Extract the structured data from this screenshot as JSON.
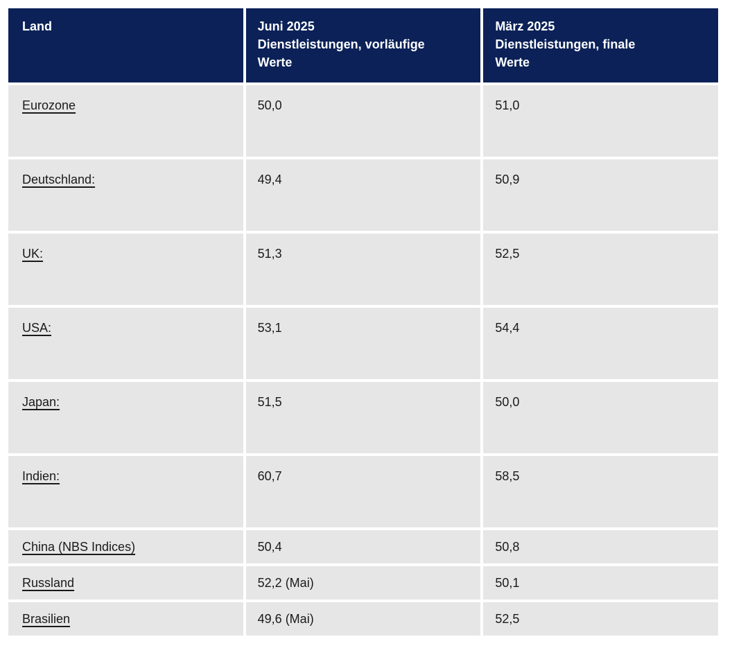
{
  "colors": {
    "header_bg": "#0b2157",
    "header_text": "#ffffff",
    "row_bg": "#e6e6e6",
    "body_text": "#1a1a1a",
    "gutter": "#ffffff"
  },
  "table": {
    "header": {
      "land": {
        "lines": [
          "Land"
        ]
      },
      "juni": {
        "lines": [
          "Juni 2025",
          "Dienstleistungen, vorläufige",
          "Werte"
        ]
      },
      "maerz": {
        "lines": [
          "März 2025",
          "Dienstleistungen, finale",
          "Werte"
        ]
      }
    },
    "rows": [
      {
        "land": "Eurozone",
        "juni": "50,0",
        "maerz": "51,0"
      },
      {
        "land": "Deutschland:",
        "juni": "49,4",
        "maerz": "50,9"
      },
      {
        "land": "UK:",
        "juni": "51,3",
        "maerz": "52,5"
      },
      {
        "land": "USA:",
        "juni": "53,1",
        "maerz": "54,4"
      },
      {
        "land": "Japan:",
        "juni": "51,5",
        "maerz": "50,0"
      },
      {
        "land": "Indien:",
        "juni": "60,7",
        "maerz": "58,5"
      },
      {
        "land": "China (NBS Indices)",
        "juni": "50,4",
        "maerz": "50,8"
      },
      {
        "land": "Russland",
        "juni": "52,2 (Mai)",
        "maerz": "50,1"
      },
      {
        "land": "Brasilien",
        "juni": "49,6 (Mai)",
        "maerz": "52,5"
      }
    ]
  },
  "chart_data": {
    "type": "table",
    "categories": [
      "Eurozone",
      "Deutschland",
      "UK",
      "USA",
      "Japan",
      "Indien",
      "China (NBS Indices)",
      "Russland",
      "Brasilien"
    ],
    "series": [
      {
        "name": "Juni 2025 Dienstleistungen, vorläufige Werte",
        "values": [
          50.0,
          49.4,
          51.3,
          53.1,
          51.5,
          60.7,
          50.4,
          52.2,
          49.6
        ],
        "value_labels": [
          "50,0",
          "49,4",
          "51,3",
          "53,1",
          "51,5",
          "60,7",
          "50,4",
          "52,2 (Mai)",
          "49,6 (Mai)"
        ]
      },
      {
        "name": "März 2025 Dienstleistungen, finale Werte",
        "values": [
          51.0,
          50.9,
          52.5,
          54.4,
          50.0,
          58.5,
          50.8,
          50.1,
          52.5
        ],
        "value_labels": [
          "51,0",
          "50,9",
          "52,5",
          "54,4",
          "50,0",
          "58,5",
          "50,8",
          "50,1",
          "52,5"
        ]
      }
    ]
  }
}
